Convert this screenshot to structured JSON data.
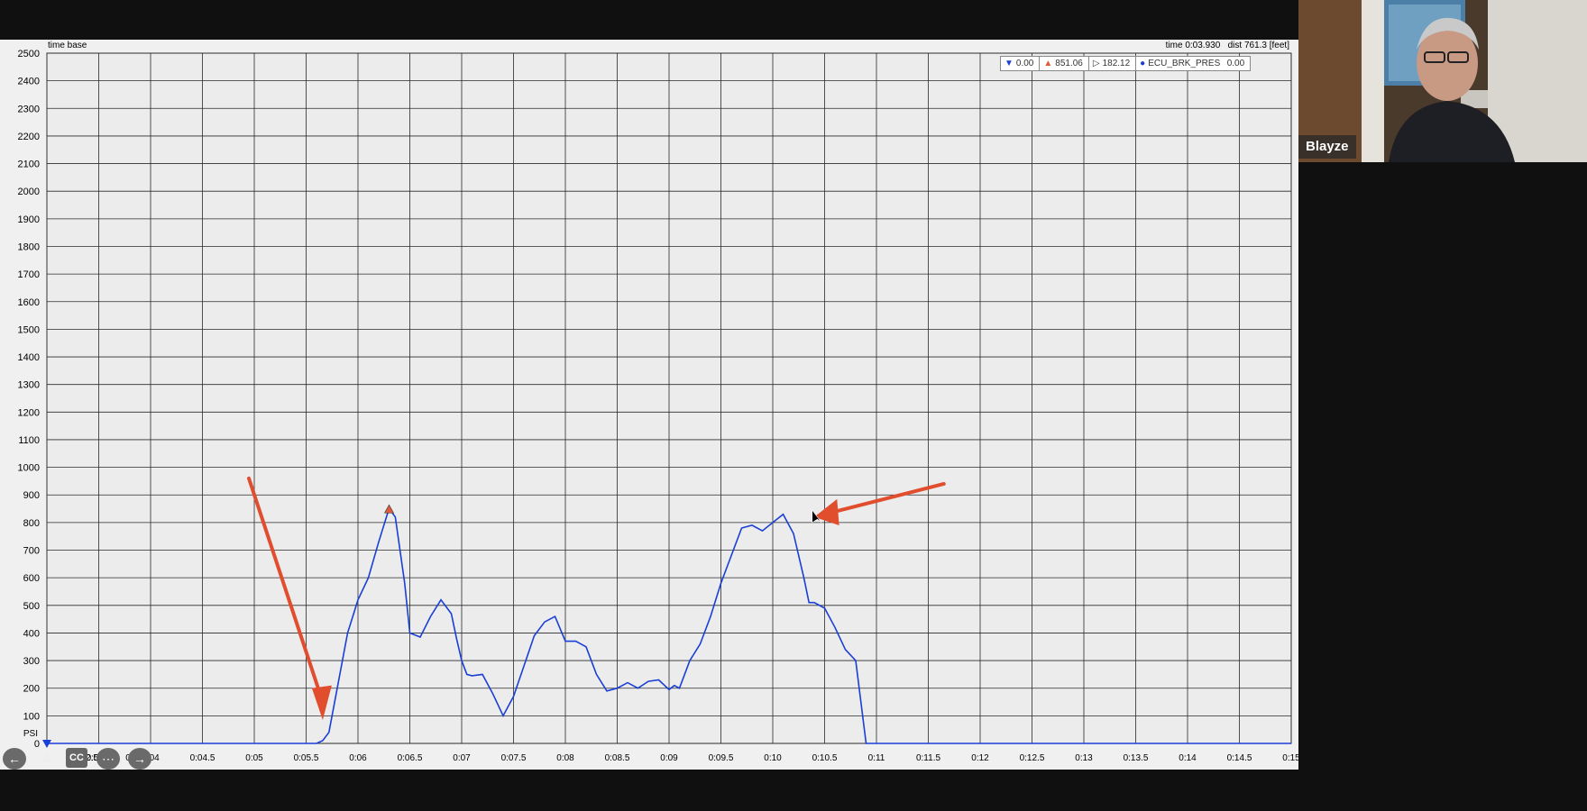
{
  "toolbar": {
    "time_base_label": "time base",
    "time_readout": "time 0:03.930",
    "dist_readout": "dist 761.3 [feet]"
  },
  "legend": {
    "min_label": "0.00",
    "max_label": "851.06",
    "avg_label": "182.12",
    "channel_name": "ECU_BRK_PRES",
    "channel_value": "0.00",
    "min_color": "#1a3fd6",
    "max_color": "#e05a3a",
    "channel_color": "#1a3fd6"
  },
  "controls": {
    "back_icon": "arrow-left-circle-icon",
    "cursor_icon": "cursor-triangle-icon",
    "cc_label": "CC",
    "more_icon": "ellipsis-circle-icon",
    "forward_icon": "arrow-right-circle-icon",
    "partial_tick_1": "2.5",
    "partial_tick_2": "0"
  },
  "participant": {
    "name": "Blayze"
  },
  "chart_data": {
    "type": "line",
    "title": "",
    "ylabel": "PSI",
    "xlabel": "",
    "ylim": [
      0,
      2500
    ],
    "yticks": [
      0,
      100,
      200,
      300,
      400,
      500,
      600,
      700,
      800,
      900,
      1000,
      1100,
      1200,
      1300,
      1400,
      1500,
      1600,
      1700,
      1800,
      1900,
      2000,
      2100,
      2200,
      2300,
      2400,
      2500
    ],
    "xlim": [
      3.0,
      15.0
    ],
    "x_tick_labels": [
      "0:03.5",
      "0:04",
      "0:04.5",
      "0:05",
      "0:05.5",
      "0:06",
      "0:06.5",
      "0:07",
      "0:07.5",
      "0:08",
      "0:08.5",
      "0:09",
      "0:09.5",
      "0:10",
      "0:10.5",
      "0:11",
      "0:11.5",
      "0:12",
      "0:12.5",
      "0:13",
      "0:13.5",
      "0:14",
      "0:14.5",
      "0:15"
    ],
    "x_tick_values": [
      3.5,
      4,
      4.5,
      5,
      5.5,
      6,
      6.5,
      7,
      7.5,
      8,
      8.5,
      9,
      9.5,
      10,
      10.5,
      11,
      11.5,
      12,
      12.5,
      13,
      13.5,
      14,
      14.5,
      15
    ],
    "grid": true,
    "series": [
      {
        "name": "ECU_BRK_PRES",
        "color": "#1a3fd6",
        "x": [
          3.0,
          5.5,
          5.6,
          5.66,
          5.72,
          5.8,
          5.9,
          6.0,
          6.1,
          6.2,
          6.3,
          6.36,
          6.45,
          6.5,
          6.6,
          6.7,
          6.8,
          6.9,
          6.95,
          7.0,
          7.05,
          7.1,
          7.2,
          7.3,
          7.4,
          7.5,
          7.6,
          7.7,
          7.8,
          7.9,
          8.0,
          8.1,
          8.2,
          8.3,
          8.4,
          8.5,
          8.6,
          8.7,
          8.8,
          8.9,
          9.0,
          9.05,
          9.1,
          9.2,
          9.3,
          9.4,
          9.5,
          9.6,
          9.7,
          9.8,
          9.9,
          10.0,
          10.1,
          10.2,
          10.3,
          10.35,
          10.4,
          10.5,
          10.6,
          10.7,
          10.8,
          10.9,
          11.0,
          11.1,
          11.2,
          11.3,
          15.0
        ],
        "y": [
          0,
          0,
          0,
          10,
          40,
          200,
          400,
          520,
          600,
          730,
          851,
          820,
          580,
          400,
          385,
          460,
          520,
          470,
          380,
          300,
          250,
          245,
          250,
          180,
          100,
          170,
          280,
          390,
          440,
          460,
          370,
          370,
          350,
          250,
          190,
          200,
          220,
          200,
          225,
          230,
          195,
          210,
          200,
          300,
          360,
          460,
          580,
          680,
          780,
          790,
          770,
          800,
          830,
          760,
          600,
          510,
          510,
          490,
          420,
          340,
          300,
          0,
          0,
          0,
          0,
          0,
          0
        ]
      }
    ],
    "markers": [
      {
        "label": "max",
        "x": 6.3,
        "y": 851
      },
      {
        "label": "min",
        "x": 3.0,
        "y": 0
      }
    ],
    "annotations": [
      "red arrow pointing to brake onset near 0:05.6",
      "red arrow pointing to second peak near 0:10.3"
    ]
  }
}
